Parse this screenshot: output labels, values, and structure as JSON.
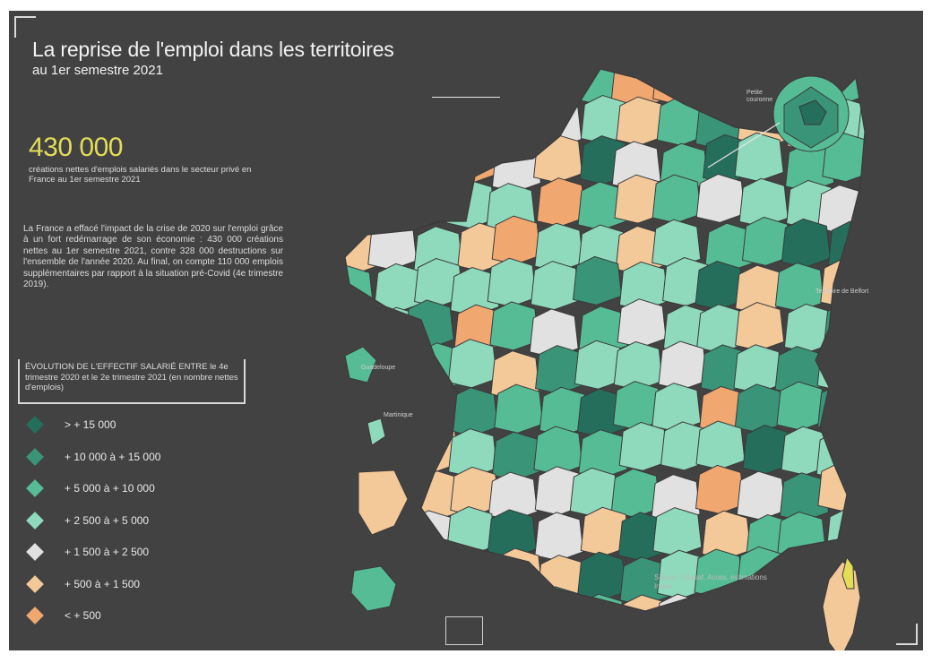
{
  "header": {
    "title": "La reprise de l'emploi dans les territoires",
    "subtitle": "au 1er semestre 2021"
  },
  "highlight": {
    "value": "430 000",
    "caption": "créations nettes d'emplois salariés dans le secteur privé en France au 1er semestre 2021"
  },
  "paragraph": "La France a effacé l'impact de la crise de 2020 sur l'emploi grâce à un fort redémarrage de son économie : 430 000 créations nettes au 1er semestre 2021, contre 328 000 destructions sur l'ensemble de l'année 2020. Au final, on compte 110 000 emplois supplémentaires par rapport à la situation pré-Covid (4e trimestre 2019).",
  "legend": {
    "title": "ÉVOLUTION DE L'EFFECTIF SALARIÉ ENTRE le 4e trimestre 2020 et le 2e trimestre 2021 (en nombre nettes d'emplois)",
    "items": [
      {
        "label": "> + 15 000",
        "color": "#256e5b"
      },
      {
        "label": "+ 10 000 à + 15 000",
        "color": "#3a9478"
      },
      {
        "label": "+ 5 000 à + 10 000",
        "color": "#56bc96"
      },
      {
        "label": "+ 2 500 à + 5 000",
        "color": "#8fd9bd"
      },
      {
        "label": "+ 1 500 à + 2 500",
        "color": "#e1e1e1"
      },
      {
        "label": "+ 500 à + 1 500",
        "color": "#f3c99a"
      },
      {
        "label": "< + 500",
        "color": "#f0a770"
      }
    ]
  },
  "callouts": {
    "paris": "Petite couronne",
    "east": "Territoire de Belfort",
    "antilles1": "Guadeloupe",
    "antilles2": "Martinique"
  },
  "source": "Source : Urssaf, Acoss, estimations Insee"
}
